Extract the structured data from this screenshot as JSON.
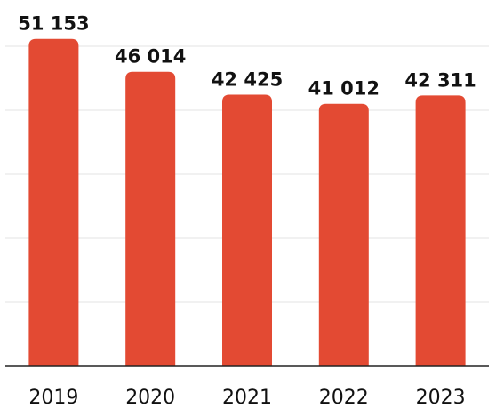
{
  "chart_data": {
    "type": "bar",
    "title": "",
    "xlabel": "",
    "ylabel": "",
    "categories": [
      "2019",
      "2020",
      "2021",
      "2022",
      "2023"
    ],
    "values": [
      51153,
      46014,
      42425,
      41012,
      42311
    ],
    "value_labels": [
      "51 153",
      "46 014",
      "42 425",
      "41 012",
      "42 311"
    ],
    "ylim": [
      0,
      50000
    ],
    "grid": true,
    "bar_color": "#e34a33"
  }
}
